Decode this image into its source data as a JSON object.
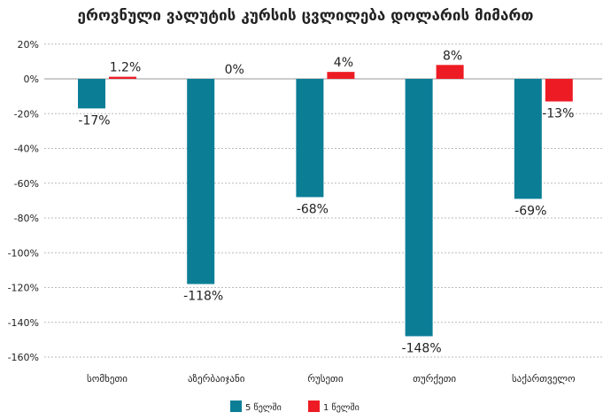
{
  "chart_data": {
    "type": "bar",
    "title": "ეროვნული ვალუტის კურსის ცვლილება დოლარის მიმართ",
    "categories": [
      "სომხეთი",
      "აზერბაიჯანი",
      "რუსეთი",
      "თურქეთი",
      "საქართველო"
    ],
    "series": [
      {
        "name": "5 წელში",
        "color": "#0b7e96",
        "values": [
          -17,
          -118,
          -68,
          -148,
          -69
        ],
        "labels": [
          "-17%",
          "-118%",
          "-68%",
          "-148%",
          "-69%"
        ]
      },
      {
        "name": "1 წელში",
        "color": "#ed1c24",
        "values": [
          1.2,
          0,
          4,
          8,
          -13
        ],
        "labels": [
          "1.2%",
          "0%",
          "4%",
          "8%",
          "-13%"
        ]
      }
    ],
    "yticks": [
      20,
      0,
      -20,
      -40,
      -60,
      -80,
      -100,
      -120,
      -140,
      -160
    ],
    "ytick_labels": [
      "20%",
      "0%",
      "-20%",
      "-40%",
      "-60%",
      "-80%",
      "-100%",
      "-120%",
      "-140%",
      "-160%"
    ],
    "ylim": [
      -160,
      20
    ],
    "grid": true,
    "legend": "bottom",
    "xlabel": "",
    "ylabel": ""
  }
}
